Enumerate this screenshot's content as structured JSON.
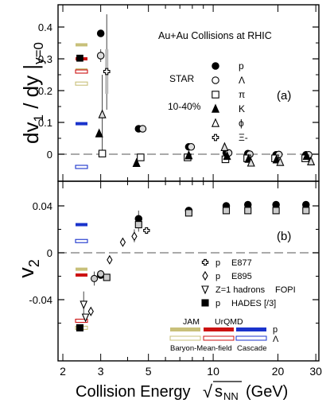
{
  "chart_data": [
    {
      "panel": "(a)",
      "type": "scatter",
      "title": "Au+Au Collisions at RHIC",
      "ylabel": "dv1 / dy |y=0",
      "xlabel": "Collision Energy √sNN (GeV)",
      "xscale": "log",
      "xlim": [
        1.9,
        31
      ],
      "ylim": [
        -0.07,
        0.45
      ],
      "yticks": [
        0,
        0.1,
        0.2,
        0.3,
        0.4
      ],
      "legend_group": "STAR",
      "centrality": "10-40%",
      "series": [
        {
          "name": "p",
          "marker": "filled-circle",
          "points": [
            [
              3.0,
              0.38
            ],
            [
              4.5,
              0.08
            ],
            [
              7.7,
              0.023
            ],
            [
              11.5,
              0.004
            ],
            [
              14.5,
              0.002
            ],
            [
              19.6,
              -0.002
            ],
            [
              27,
              -0.002
            ]
          ]
        },
        {
          "name": "Λ",
          "marker": "open-circle",
          "points": [
            [
              3.0,
              0.31
            ],
            [
              4.7,
              0.08
            ],
            [
              7.9,
              0.023
            ],
            [
              11.8,
              0.004
            ],
            [
              14.8,
              0.0
            ],
            [
              20.2,
              -0.001
            ],
            [
              27.8,
              -0.002
            ]
          ]
        },
        {
          "name": "π",
          "marker": "open-square",
          "points": [
            [
              3.05,
              0.002
            ],
            [
              4.6,
              -0.01
            ],
            [
              7.6,
              -0.01
            ],
            [
              11.4,
              -0.016
            ],
            [
              14.4,
              -0.013
            ],
            [
              19.4,
              -0.013
            ],
            [
              26.8,
              -0.013
            ]
          ]
        },
        {
          "name": "K",
          "marker": "filled-triangle",
          "points": [
            [
              2.95,
              0.065
            ],
            [
              4.4,
              -0.028
            ],
            [
              7.7,
              -0.004
            ],
            [
              11.6,
              -0.006
            ],
            [
              14.6,
              -0.015
            ],
            [
              19.7,
              -0.017
            ],
            [
              27.2,
              -0.006
            ]
          ]
        },
        {
          "name": "ϕ",
          "marker": "open-triangle",
          "points": [
            [
              3.05,
              0.125
            ],
            [
              11.3,
              0.022
            ],
            [
              15.0,
              -0.027
            ],
            [
              20.5,
              -0.025
            ],
            [
              28.5,
              -0.023
            ]
          ]
        },
        {
          "name": "Ξ-",
          "marker": "open-cross",
          "points": [
            [
              3.2,
              0.26
            ]
          ]
        }
      ],
      "model_markers": [
        {
          "model": "JAM",
          "points": [
            0.344,
            0.265
          ]
        },
        {
          "model": "UrQMD",
          "points": [
            0.3,
            0.26
          ]
        },
        {
          "model": "Cascade",
          "points": [
            0.096,
            -0.04
          ]
        }
      ],
      "other_markers": [
        {
          "label": "HADES",
          "x": 2.4,
          "y": 0.302
        }
      ]
    },
    {
      "panel": "(b)",
      "type": "scatter",
      "ylabel": "v2",
      "xlabel": "Collision Energy √sNN (GeV)",
      "xscale": "log",
      "xlim": [
        1.9,
        31
      ],
      "ylim": [
        -0.076,
        0.055
      ],
      "yticks": [
        -0.04,
        0,
        0.04
      ],
      "xticks": [
        2,
        3,
        5,
        10,
        20,
        30
      ],
      "series": [
        {
          "name": "STAR p (filled)",
          "marker": "filled-circle",
          "points": [
            [
              3.0,
              -0.019
            ],
            [
              4.5,
              0.029
            ],
            [
              7.7,
              0.036
            ],
            [
              11.5,
              0.04
            ],
            [
              14.5,
              0.041
            ],
            [
              19.6,
              0.041
            ],
            [
              27,
              0.041
            ]
          ]
        },
        {
          "name": "STAR Λ (open square)",
          "marker": "open-square",
          "points": [
            [
              3.2,
              -0.021
            ],
            [
              4.5,
              0.024
            ],
            [
              7.7,
              0.034
            ],
            [
              11.5,
              0.036
            ],
            [
              14.5,
              0.036
            ],
            [
              19.6,
              0.036
            ],
            [
              27,
              0.036
            ]
          ]
        },
        {
          "name": "E877 p",
          "marker": "open-cross",
          "points": [
            [
              4.9,
              0.019
            ]
          ]
        },
        {
          "name": "E895 p",
          "marker": "open-diamond",
          "points": [
            [
              2.7,
              -0.05
            ],
            [
              3.3,
              -0.006
            ],
            [
              3.8,
              0.009
            ],
            [
              4.3,
              0.014
            ]
          ]
        },
        {
          "name": "FOPI Z=1 hadrons",
          "marker": "open-tri-down",
          "points": [
            [
              2.5,
              -0.044
            ],
            [
              2.55,
              -0.055
            ]
          ]
        },
        {
          "name": "HADES [/3]",
          "marker": "filled-square",
          "points": [
            [
              2.4,
              -0.064
            ]
          ]
        },
        {
          "name": "STAR p (other)",
          "marker": "open-circle",
          "points": [
            [
              2.8,
              -0.022
            ],
            [
              3.0,
              -0.018
            ]
          ]
        }
      ],
      "model_markers": [
        {
          "model": "JAM",
          "points": [
            -0.014,
            -0.058
          ]
        },
        {
          "model": "UrQMD",
          "points": [
            -0.019
          ]
        },
        {
          "model": "Cascade",
          "points": [
            0.024,
            0.01
          ]
        }
      ],
      "legend": [
        {
          "label": "p",
          "extra": "E877"
        },
        {
          "label": "p",
          "extra": "E895"
        },
        {
          "label": "Z=1 hadrons",
          "extra": "FOPI"
        },
        {
          "label": "p",
          "extra": "HADES [/3]"
        }
      ],
      "model_legend": {
        "headers": [
          "JAM",
          "UrQMD"
        ],
        "labels_row2": [
          "Baryon-Mean-field",
          "Cascade"
        ],
        "species": [
          "p",
          "Λ"
        ]
      }
    }
  ],
  "text": {
    "title": "Au+Au Collisions at RHIC",
    "star": "STAR",
    "centrality": "10-40%",
    "panel_a": "(a)",
    "panel_b": "(b)",
    "xlabel_left": "Collision Energy",
    "xlabel_right": "(GeV)",
    "sqrt_sym": "√",
    "sqrt_sub": "s",
    "sqrt_subscript": "NN"
  },
  "colors": {
    "JAM": "#c8c07a",
    "UrQMD": "#cc1111",
    "Cascade": "#1a33cc",
    "grey_fill": "#aaaaaa"
  }
}
